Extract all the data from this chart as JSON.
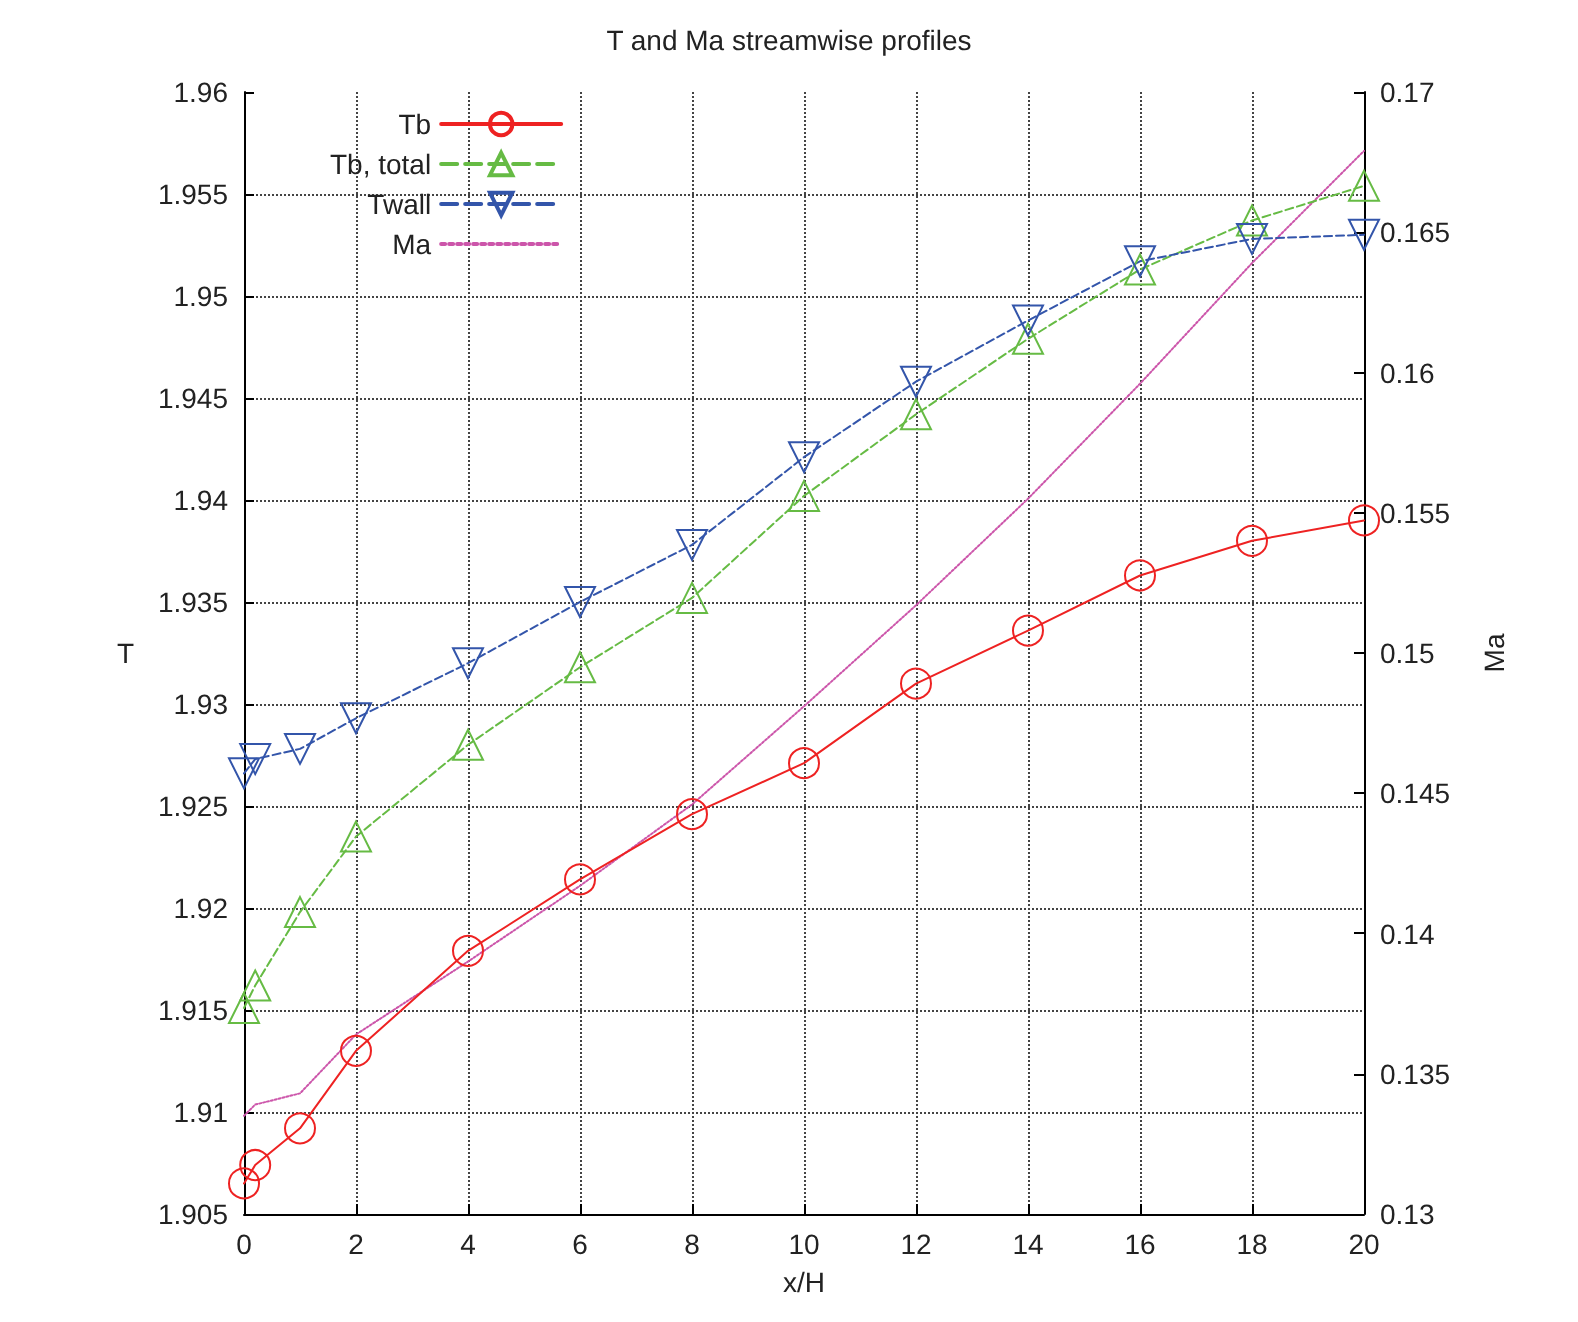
{
  "chart_data": {
    "type": "line",
    "title": "T and Ma streamwise profiles",
    "xlabel": "x/H",
    "ylabel": "T",
    "y2label": "Ma",
    "x": [
      0,
      0.2,
      1,
      2,
      4,
      6,
      8,
      10,
      12,
      14,
      16,
      18,
      20
    ],
    "series": [
      {
        "name": "Tb",
        "color": "#ee2222",
        "marker": "circle",
        "line_style": "solid",
        "values": [
          1.9065,
          1.9074,
          1.9092,
          1.913,
          1.9179,
          1.9214,
          1.9246,
          1.9271,
          1.931,
          1.9336,
          1.9363,
          1.938,
          1.939
        ]
      },
      {
        "name": "Tb, total",
        "color": "#66bb44",
        "marker": "triangle",
        "line_style": "dashed",
        "values": [
          1.9151,
          1.9162,
          1.9198,
          1.9235,
          1.928,
          1.9318,
          1.9352,
          1.9402,
          1.9442,
          1.9479,
          1.9513,
          1.9537,
          1.9554
        ]
      },
      {
        "name": "Twall",
        "color": "#3355aa",
        "marker": "triangle-down",
        "line_style": "dashed",
        "values": [
          1.9266,
          1.9273,
          1.9278,
          1.9293,
          1.932,
          1.935,
          1.9378,
          1.9421,
          1.9458,
          1.9488,
          1.9517,
          1.9528,
          1.953
        ]
      },
      {
        "name": "Ma",
        "color": "#cc55aa",
        "marker": "none",
        "line_style": "dotted",
        "axis": "y2",
        "values": [
          0.1335,
          0.1339,
          0.1343,
          0.1364,
          0.139,
          0.1417,
          0.1446,
          0.1481,
          0.1517,
          0.1555,
          0.1596,
          0.1639,
          0.1679
        ]
      }
    ],
    "xlim": [
      0,
      20
    ],
    "xticks": [
      0,
      2,
      4,
      6,
      8,
      10,
      12,
      14,
      16,
      18,
      20
    ],
    "ylim": [
      1.905,
      1.96
    ],
    "yticks": [
      1.905,
      1.91,
      1.915,
      1.92,
      1.925,
      1.93,
      1.935,
      1.94,
      1.945,
      1.95,
      1.955,
      1.96
    ],
    "y2lim": [
      0.13,
      0.17
    ],
    "y2ticks": [
      0.13,
      0.135,
      0.14,
      0.145,
      0.15,
      0.155,
      0.16,
      0.165,
      0.17
    ],
    "grid": true,
    "legend": "top left"
  }
}
